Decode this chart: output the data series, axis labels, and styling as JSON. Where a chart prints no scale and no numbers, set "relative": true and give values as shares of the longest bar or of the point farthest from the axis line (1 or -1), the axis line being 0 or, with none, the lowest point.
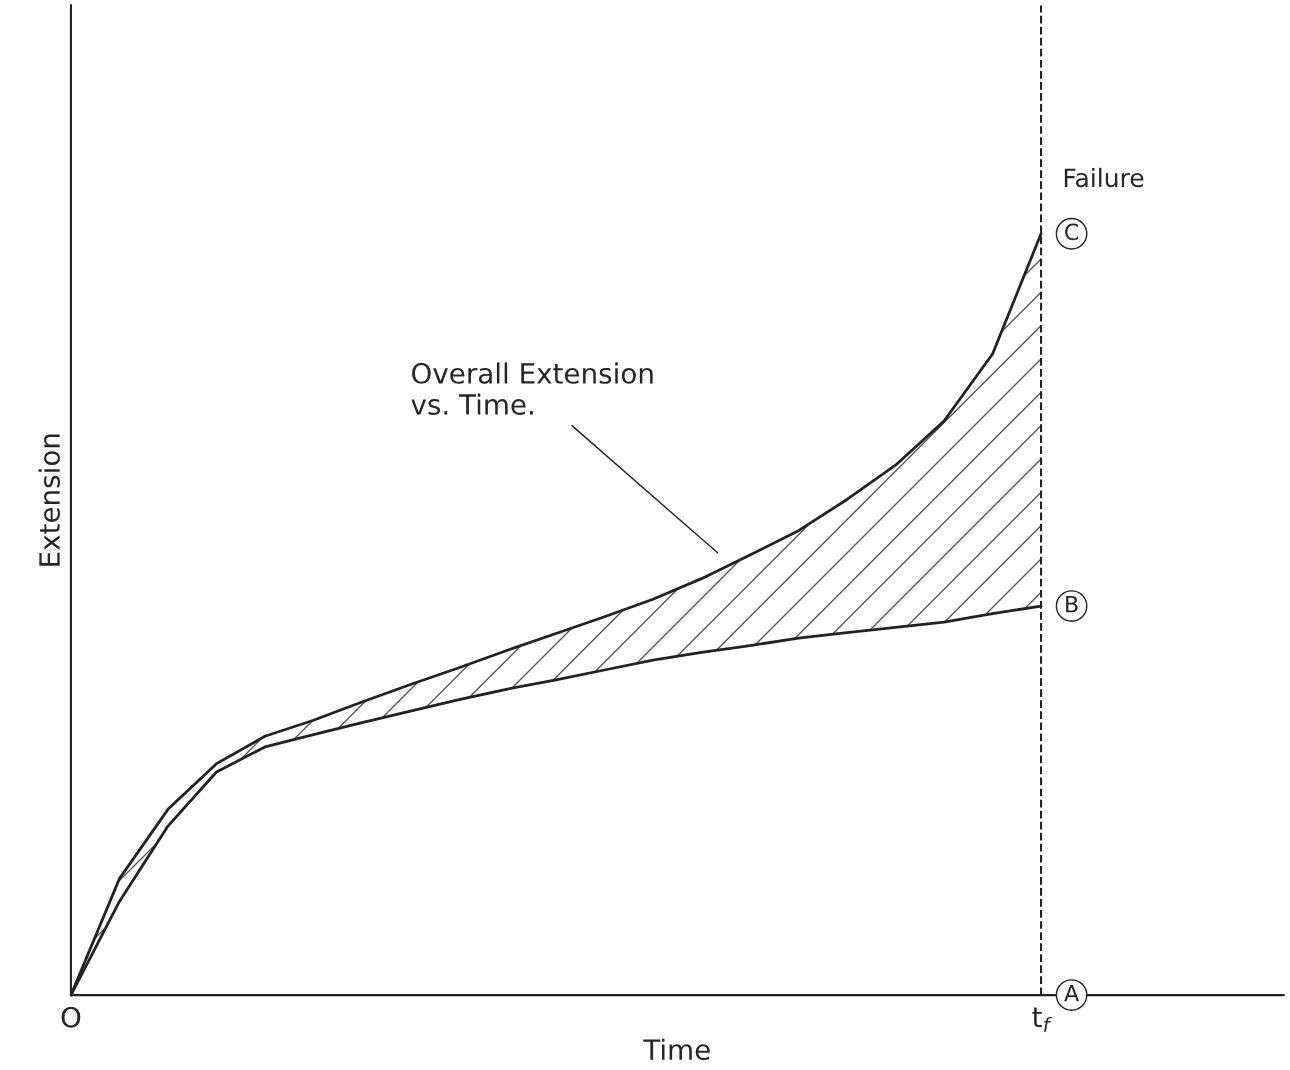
{
  "chart_data": {
    "type": "line",
    "relative": true,
    "xlabel": "Time",
    "ylabel": "Extension",
    "categories": [
      "O",
      null,
      null,
      null,
      null,
      null,
      null,
      null,
      null,
      null,
      null,
      null,
      null,
      null,
      null,
      null,
      null,
      null,
      null,
      null,
      "t$_{f}$",
      null,
      null,
      null,
      null,
      null
    ],
    "tick_labels": "x",
    "grid": false,
    "legend": false,
    "marker": "none",
    "line_style": "solid",
    "series": [
      {
        "color": "#222222",
        "values": [
          0,
          0.153,
          0.244,
          0.304,
          0.34,
          0.361,
          0.385,
          0.408,
          0.43,
          0.453,
          0.475,
          0.497,
          0.52,
          0.547,
          0.578,
          0.61,
          0.651,
          0.696,
          0.754,
          0.842,
          1.0,
          null,
          null,
          null,
          null,
          null
        ],
        "lower": [
          0,
          0.123,
          0.222,
          0.293,
          0.326,
          0.342,
          0.358,
          0.373,
          0.388,
          0.402,
          0.414,
          0.427,
          0.44,
          0.45,
          0.459,
          0.469,
          0.476,
          0.483,
          0.49,
          0.501,
          0.511,
          null,
          null,
          null,
          null,
          null
        ],
        "upper": [
          0,
          0.153,
          0.244,
          0.304,
          0.34,
          0.361,
          0.385,
          0.408,
          0.43,
          0.453,
          0.475,
          0.497,
          0.52,
          0.547,
          0.578,
          0.61,
          0.651,
          0.696,
          0.754,
          0.842,
          1.0,
          null,
          null,
          null,
          null,
          null
        ]
      },
      {
        "color": "#222222",
        "values": [
          0,
          0.123,
          0.222,
          0.293,
          0.326,
          0.342,
          0.358,
          0.373,
          0.388,
          0.402,
          0.414,
          0.427,
          0.44,
          0.45,
          0.459,
          0.469,
          0.476,
          0.483,
          0.49,
          0.501,
          0.511,
          null,
          null,
          null,
          null,
          null
        ]
      }
    ],
    "ref_lines": [
      {
        "axis": "x",
        "value": "t$_{f}$",
        "line_style": "dashed",
        "color": "#222222"
      }
    ],
    "annotations": [
      {
        "text": "A",
        "x": "t$_{f}$",
        "y": 0
      },
      {
        "text": "B",
        "x": "t$_{f}$",
        "y": 0.511
      },
      {
        "text": "C",
        "x": "t$_{f}$",
        "y": 1
      },
      {
        "text": "Failure",
        "x": "t$_{f}$",
        "y": 1
      },
      "Overall Extension\nvs. Time."
    ]
  }
}
